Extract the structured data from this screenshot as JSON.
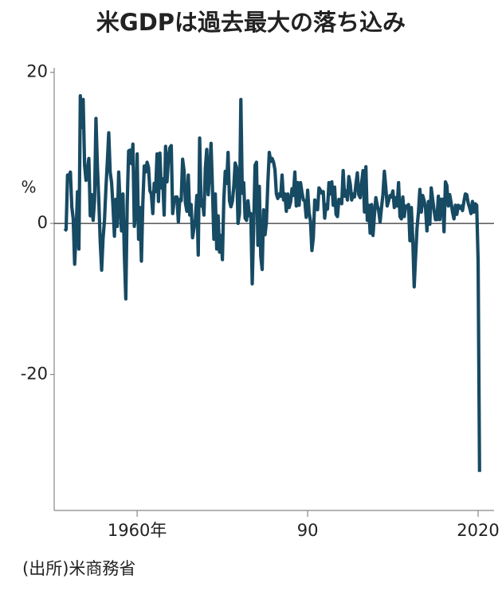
{
  "chart_data": {
    "type": "line",
    "title": "米GDPは過去最大の落ち込み",
    "y_unit_label": "%",
    "source": "(出所)米商務省",
    "xlim": [
      1945.4,
      2022.8
    ],
    "xticks": [
      {
        "value": 1960,
        "label": "1960年"
      },
      {
        "value": 1990,
        "label": "90"
      },
      2020
    ],
    "ylim": [
      -38,
      20.6
    ],
    "yticks": [
      20,
      0,
      -20
    ],
    "series": [
      {
        "color": "#174a63",
        "x": [
          1947.25,
          1947.5,
          1947.75,
          1948,
          1948.25,
          1948.5,
          1948.75,
          1949,
          1949.25,
          1949.5,
          1949.75,
          1950,
          1950.25,
          1950.5,
          1950.75,
          1951,
          1951.25,
          1951.5,
          1951.75,
          1952,
          1952.25,
          1952.5,
          1952.75,
          1953,
          1953.25,
          1953.5,
          1953.75,
          1954,
          1954.25,
          1954.5,
          1954.75,
          1955,
          1955.25,
          1955.5,
          1955.75,
          1956,
          1956.25,
          1956.5,
          1956.75,
          1957,
          1957.25,
          1957.5,
          1957.75,
          1958,
          1958.25,
          1958.5,
          1958.75,
          1959,
          1959.25,
          1959.5,
          1959.75,
          1960,
          1960.25,
          1960.5,
          1960.75,
          1961,
          1961.25,
          1961.5,
          1961.75,
          1962,
          1962.25,
          1962.5,
          1962.75,
          1963,
          1963.25,
          1963.5,
          1963.75,
          1964,
          1964.25,
          1964.5,
          1964.75,
          1965,
          1965.25,
          1965.5,
          1965.75,
          1966,
          1966.25,
          1966.5,
          1966.75,
          1967,
          1967.25,
          1967.5,
          1967.75,
          1968,
          1968.25,
          1968.5,
          1968.75,
          1969,
          1969.25,
          1969.5,
          1969.75,
          1970,
          1970.25,
          1970.5,
          1970.75,
          1971,
          1971.25,
          1971.5,
          1971.75,
          1972,
          1972.25,
          1972.5,
          1972.75,
          1973,
          1973.25,
          1973.5,
          1973.75,
          1974,
          1974.25,
          1974.5,
          1974.75,
          1975,
          1975.25,
          1975.5,
          1975.75,
          1976,
          1976.25,
          1976.5,
          1976.75,
          1977,
          1977.25,
          1977.5,
          1977.75,
          1978,
          1978.25,
          1978.5,
          1978.75,
          1979,
          1979.25,
          1979.5,
          1979.75,
          1980,
          1980.25,
          1980.5,
          1980.75,
          1981,
          1981.25,
          1981.5,
          1981.75,
          1982,
          1982.25,
          1982.5,
          1982.75,
          1983,
          1983.25,
          1983.5,
          1983.75,
          1984,
          1984.25,
          1984.5,
          1984.75,
          1985,
          1985.25,
          1985.5,
          1985.75,
          1986,
          1986.25,
          1986.5,
          1986.75,
          1987,
          1987.25,
          1987.5,
          1987.75,
          1988,
          1988.25,
          1988.5,
          1988.75,
          1989,
          1989.25,
          1989.5,
          1989.75,
          1990,
          1990.25,
          1990.5,
          1990.75,
          1991,
          1991.25,
          1991.5,
          1991.75,
          1992,
          1992.25,
          1992.5,
          1992.75,
          1993,
          1993.25,
          1993.5,
          1993.75,
          1994,
          1994.25,
          1994.5,
          1994.75,
          1995,
          1995.25,
          1995.5,
          1995.75,
          1996,
          1996.25,
          1996.5,
          1996.75,
          1997,
          1997.25,
          1997.5,
          1997.75,
          1998,
          1998.25,
          1998.5,
          1998.75,
          1999,
          1999.25,
          1999.5,
          1999.75,
          2000,
          2000.25,
          2000.5,
          2000.75,
          2001,
          2001.25,
          2001.5,
          2001.75,
          2002,
          2002.25,
          2002.5,
          2002.75,
          2003,
          2003.25,
          2003.5,
          2003.75,
          2004,
          2004.25,
          2004.5,
          2004.75,
          2005,
          2005.25,
          2005.5,
          2005.75,
          2006,
          2006.25,
          2006.5,
          2006.75,
          2007,
          2007.25,
          2007.5,
          2007.75,
          2008,
          2008.25,
          2008.5,
          2008.75,
          2009,
          2009.25,
          2009.5,
          2009.75,
          2010,
          2010.25,
          2010.5,
          2010.75,
          2011,
          2011.25,
          2011.5,
          2011.75,
          2012,
          2012.25,
          2012.5,
          2012.75,
          2013,
          2013.25,
          2013.5,
          2013.75,
          2014,
          2014.25,
          2014.5,
          2014.75,
          2015,
          2015.25,
          2015.5,
          2015.75,
          2016,
          2016.25,
          2016.5,
          2016.75,
          2017,
          2017.25,
          2017.5,
          2017.75,
          2018,
          2018.25,
          2018.5,
          2018.75,
          2019,
          2019.25,
          2019.5,
          2019.75,
          2020,
          2020.25
        ],
        "values": [
          -1,
          -0.8,
          6.4,
          6.2,
          6.8,
          2.2,
          0.6,
          -5.4,
          -1.4,
          4.2,
          -3.4,
          16.9,
          12.7,
          16.4,
          7.7,
          5.7,
          7.1,
          8.6,
          1.0,
          3.8,
          0.4,
          3.0,
          13.9,
          7.7,
          3.1,
          -2.4,
          -6.2,
          -2.0,
          0.4,
          4.6,
          8.1,
          12.0,
          6.8,
          5.4,
          2.3,
          -1.7,
          3.2,
          -0.4,
          6.8,
          2.6,
          -1.0,
          3.9,
          -4.1,
          -10.0,
          2.6,
          9.6,
          9.7,
          7.9,
          10.5,
          -0.4,
          1.4,
          9.2,
          -2.1,
          2.1,
          -5.0,
          2.7,
          7.6,
          6.8,
          8.1,
          7.4,
          4.3,
          3.9,
          1.3,
          5.3,
          4.2,
          9.2,
          2.9,
          9.3,
          4.7,
          5.9,
          1.1,
          10.2,
          5.5,
          8.5,
          10.0,
          10.3,
          1.3,
          3.0,
          3.5,
          3.5,
          0.2,
          3.2,
          3.0,
          8.5,
          7.0,
          2.7,
          1.6,
          6.4,
          1.1,
          2.5,
          -1.9,
          -0.6,
          0.6,
          3.7,
          -4.2,
          11.3,
          2.3,
          3.1,
          1.1,
          7.3,
          9.8,
          3.8,
          6.9,
          10.6,
          4.7,
          -2.1,
          3.9,
          -3.4,
          1.0,
          -3.8,
          -1.6,
          -4.8,
          3.1,
          6.9,
          5.3,
          9.4,
          3.0,
          2.2,
          2.9,
          4.8,
          8.0,
          7.4,
          0.0,
          1.3,
          16.4,
          4.0,
          5.4,
          0.7,
          0.4,
          3.0,
          1.0,
          1.3,
          -8.0,
          -0.5,
          7.7,
          8.1,
          -2.9,
          4.9,
          -4.3,
          -6.1,
          1.8,
          -1.5,
          0.2,
          5.4,
          9.4,
          8.2,
          8.6,
          8.1,
          7.1,
          3.9,
          3.3,
          3.9,
          3.6,
          6.4,
          3.1,
          3.9,
          1.6,
          3.9,
          2.1,
          2.8,
          4.6,
          3.7,
          6.8,
          2.3,
          5.4,
          2.4,
          5.4,
          4.1,
          3.1,
          3.0,
          0.8,
          4.4,
          1.5,
          0.3,
          -3.6,
          -1.9,
          3.1,
          1.9,
          1.8,
          4.7,
          4.4,
          4.0,
          4.2,
          0.7,
          2.5,
          1.9,
          5.4,
          3.9,
          5.5,
          2.4,
          4.8,
          1.2,
          0.9,
          3.2,
          2.8,
          2.6,
          7.0,
          3.6,
          4.3,
          3.1,
          6.2,
          5.2,
          3.1,
          3.9,
          3.5,
          5.2,
          6.7,
          3.8,
          3.4,
          5.4,
          7.0,
          1.5,
          7.5,
          0.4,
          2.4,
          -1.3,
          2.5,
          -1.6,
          1.1,
          3.4,
          2.4,
          1.7,
          0.2,
          2.1,
          3.8,
          6.9,
          4.8,
          2.3,
          3.0,
          3.7,
          3.5,
          4.3,
          2.1,
          3.4,
          2.3,
          5.4,
          0.9,
          0.6,
          3.5,
          0.9,
          2.3,
          2.2,
          2.5,
          -2.3,
          2.1,
          -2.1,
          -8.4,
          -4.4,
          -0.6,
          1.5,
          4.5,
          1.5,
          3.7,
          3.0,
          2.0,
          -1.0,
          2.9,
          -0.1,
          4.7,
          3.2,
          1.7,
          0.5,
          0.5,
          3.6,
          0.5,
          3.2,
          3.2,
          -1.1,
          5.5,
          5.0,
          2.3,
          3.8,
          2.7,
          1.5,
          0.6,
          2.4,
          1.2,
          2.4,
          2.0,
          2.3,
          1.7,
          2.9,
          3.9,
          3.8,
          2.7,
          2.1,
          1.3,
          2.9,
          1.5,
          2.6,
          2.4,
          -5.0,
          -32.9
        ]
      }
    ]
  }
}
